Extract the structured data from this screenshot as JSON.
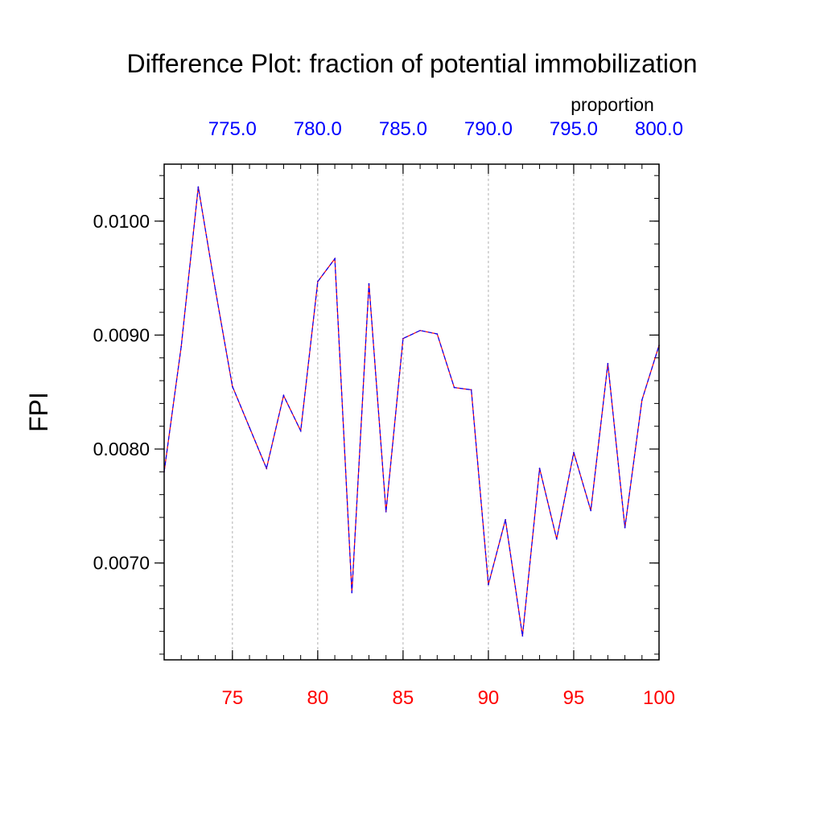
{
  "chart_data": {
    "type": "line",
    "title": "Difference Plot: fraction of potential immobilization",
    "ylabel": "FPI",
    "xlabel": "",
    "top_axis_label": "proportion",
    "xlim": [
      71,
      100
    ],
    "ylim": [
      0.00615,
      0.0105
    ],
    "x_ticks": [
      "75",
      "80",
      "85",
      "90",
      "95",
      "100"
    ],
    "x_tick_values": [
      75,
      80,
      85,
      90,
      95,
      100
    ],
    "top_ticks": [
      "775.0",
      "780.0",
      "785.0",
      "790.0",
      "795.0",
      "800.0"
    ],
    "top_tick_values": [
      75,
      80,
      85,
      90,
      95,
      100
    ],
    "y_ticks": [
      "0.0070",
      "0.0080",
      "0.0090",
      "0.0100"
    ],
    "y_tick_values": [
      0.007,
      0.008,
      0.009,
      0.01
    ],
    "x_tick_color": "#ff0000",
    "top_tick_color": "#0000ff",
    "grid": "vertical dashed at major ticks",
    "x": [
      71,
      72,
      73,
      74,
      75,
      76,
      77,
      78,
      79,
      80,
      81,
      82,
      83,
      84,
      85,
      86,
      87,
      88,
      89,
      90,
      91,
      92,
      93,
      94,
      95,
      96,
      97,
      98,
      99,
      100
    ],
    "series": [
      {
        "line_color": "#ff0000",
        "style": "solid",
        "values": [
          0.0078,
          0.0089,
          0.0103,
          0.0094,
          0.00855,
          0.00819,
          0.00783,
          0.00847,
          0.00816,
          0.00947,
          0.00967,
          0.00674,
          0.00945,
          0.00745,
          0.00897,
          0.00904,
          0.00901,
          0.00854,
          0.00852,
          0.00681,
          0.00738,
          0.00636,
          0.00783,
          0.00721,
          0.00797,
          0.00746,
          0.00875,
          0.00731,
          0.00843,
          0.00891
        ]
      },
      {
        "line_color": "#0000ff",
        "style": "dashed",
        "values": [
          0.0078,
          0.0089,
          0.0103,
          0.0094,
          0.00855,
          0.00819,
          0.00783,
          0.00847,
          0.00816,
          0.00947,
          0.00967,
          0.00674,
          0.00945,
          0.00745,
          0.00897,
          0.00904,
          0.00901,
          0.00854,
          0.00852,
          0.00681,
          0.00738,
          0.00636,
          0.00783,
          0.00721,
          0.00797,
          0.00746,
          0.00875,
          0.00731,
          0.00843,
          0.00891
        ]
      }
    ]
  }
}
